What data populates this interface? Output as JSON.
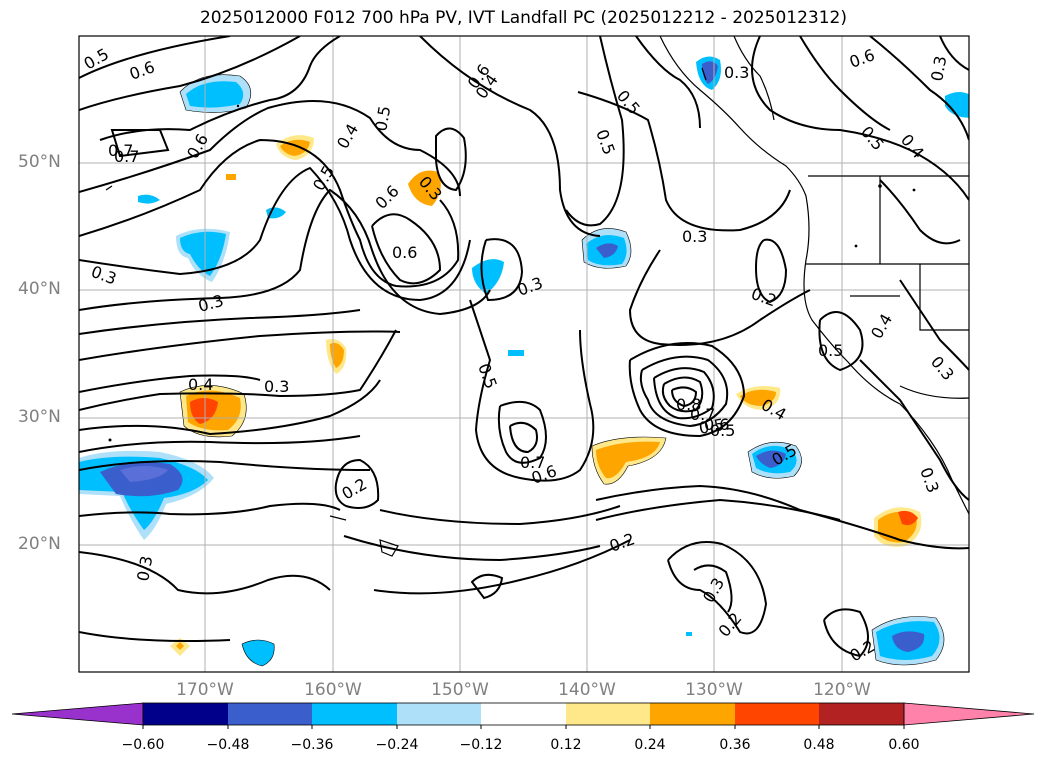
{
  "title": "2025012000 F012 700 hPa PV, IVT Landfall PC (2025012212 - 2025012312)",
  "map": {
    "lat_labels": [
      "50°N",
      "40°N",
      "30°N",
      "20°N"
    ],
    "lon_labels": [
      "170°W",
      "160°W",
      "150°W",
      "140°W",
      "130°W",
      "120°W"
    ],
    "contour_labels": [
      "0.5",
      "0.6",
      "0.7",
      "0.6",
      "0.5",
      "0.4",
      "0.6",
      "0.3",
      "0.6",
      "0.5",
      "0.6",
      "0.4",
      "0.3",
      "0.7",
      "0.3",
      "0.4",
      "0.3",
      "0.5",
      "0.7",
      "0.6",
      "0.3",
      "0.2",
      "0.2",
      "0.5",
      "0.5",
      "0.3",
      "0.5",
      "0.4",
      "0.5",
      "0.3",
      "0.6",
      "0.8",
      "0.7",
      "0.6",
      "0.5",
      "0.4",
      "0.5",
      "0.5",
      "0.3",
      "0.2",
      "0.3",
      "0.2",
      "0.2",
      "0.3",
      "0.3",
      "0.4",
      "0.3"
    ],
    "colors": {
      "contour": "#000000",
      "grid": "#b0b0b0",
      "neg_1": "#aee0fa",
      "neg_2": "#00bfff",
      "neg_3": "#3a5fcd",
      "neg_4": "#00008b",
      "pos_1": "#ffe88a",
      "pos_2": "#ffa500",
      "pos_3": "#ff4500",
      "pos_4": "#b22222"
    }
  },
  "colorbar": {
    "ticks": [
      "−0.60",
      "−0.48",
      "−0.36",
      "−0.24",
      "−0.12",
      "0.12",
      "0.24",
      "0.36",
      "0.48",
      "0.60"
    ],
    "colors": [
      "#9932cc",
      "#00008b",
      "#3a5fcd",
      "#00bfff",
      "#aee0fa",
      "#ffffff",
      "#ffe88a",
      "#ffa500",
      "#ff4500",
      "#b22222",
      "#ff82ab"
    ]
  }
}
